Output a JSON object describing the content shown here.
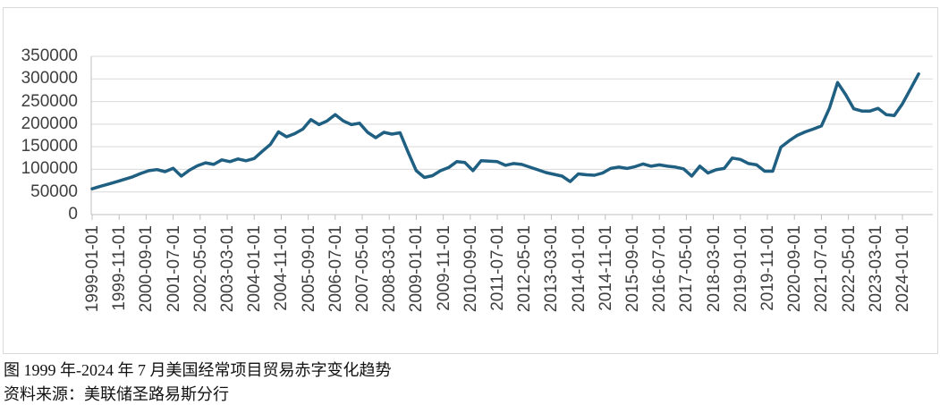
{
  "chart_data": {
    "type": "line",
    "title": "",
    "xlabel": "",
    "ylabel": "",
    "legend": "none",
    "grid": true,
    "line_color": "#1f5f82",
    "ylim": [
      0,
      350000
    ],
    "y_tick_step": 50000,
    "y_tick_labels": [
      "0",
      "50000",
      "100000",
      "150000",
      "200000",
      "250000",
      "300000",
      "350000"
    ],
    "x_tick_labels": [
      "1999-01-01",
      "1999-11-01",
      "2000-09-01",
      "2001-07-01",
      "2002-05-01",
      "2003-03-01",
      "2004-01-01",
      "2004-11-01",
      "2005-09-01",
      "2006-07-01",
      "2007-05-01",
      "2008-03-01",
      "2009-01-01",
      "2009-11-01",
      "2010-09-01",
      "2011-07-01",
      "2012-05-01",
      "2013-03-01",
      "2014-01-01",
      "2014-11-01",
      "2015-09-01",
      "2016-07-01",
      "2017-05-01",
      "2018-03-01",
      "2019-01-01",
      "2019-11-01",
      "2020-09-01",
      "2021-07-01",
      "2022-05-01",
      "2023-03-01",
      "2024-01-01"
    ],
    "x_start": "1999-01-01",
    "x_end": "2024-07-01",
    "x_step_months": 3,
    "x": [
      "1999-01-01",
      "1999-04-01",
      "1999-07-01",
      "1999-10-01",
      "2000-01-01",
      "2000-04-01",
      "2000-07-01",
      "2000-10-01",
      "2001-01-01",
      "2001-04-01",
      "2001-07-01",
      "2001-10-01",
      "2002-01-01",
      "2002-04-01",
      "2002-07-01",
      "2002-10-01",
      "2003-01-01",
      "2003-04-01",
      "2003-07-01",
      "2003-10-01",
      "2004-01-01",
      "2004-04-01",
      "2004-07-01",
      "2004-10-01",
      "2005-01-01",
      "2005-04-01",
      "2005-07-01",
      "2005-10-01",
      "2006-01-01",
      "2006-04-01",
      "2006-07-01",
      "2006-10-01",
      "2007-01-01",
      "2007-04-01",
      "2007-07-01",
      "2007-10-01",
      "2008-01-01",
      "2008-04-01",
      "2008-07-01",
      "2008-10-01",
      "2009-01-01",
      "2009-04-01",
      "2009-07-01",
      "2009-10-01",
      "2010-01-01",
      "2010-04-01",
      "2010-07-01",
      "2010-10-01",
      "2011-01-01",
      "2011-04-01",
      "2011-07-01",
      "2011-10-01",
      "2012-01-01",
      "2012-04-01",
      "2012-07-01",
      "2012-10-01",
      "2013-01-01",
      "2013-04-01",
      "2013-07-01",
      "2013-10-01",
      "2014-01-01",
      "2014-04-01",
      "2014-07-01",
      "2014-10-01",
      "2015-01-01",
      "2015-04-01",
      "2015-07-01",
      "2015-10-01",
      "2016-01-01",
      "2016-04-01",
      "2016-07-01",
      "2016-10-01",
      "2017-01-01",
      "2017-04-01",
      "2017-07-01",
      "2017-10-01",
      "2018-01-01",
      "2018-04-01",
      "2018-07-01",
      "2018-10-01",
      "2019-01-01",
      "2019-04-01",
      "2019-07-01",
      "2019-10-01",
      "2020-01-01",
      "2020-04-01",
      "2020-07-01",
      "2020-10-01",
      "2021-01-01",
      "2021-04-01",
      "2021-07-01",
      "2021-10-01",
      "2022-01-01",
      "2022-04-01",
      "2022-07-01",
      "2022-10-01",
      "2023-01-01",
      "2023-04-01",
      "2023-07-01",
      "2023-10-01",
      "2024-01-01",
      "2024-04-01",
      "2024-07-01"
    ],
    "values": [
      57000,
      62500,
      67500,
      72500,
      78000,
      83500,
      91000,
      97000,
      99500,
      95000,
      102500,
      85000,
      98000,
      108000,
      114500,
      111000,
      121000,
      117000,
      123000,
      119000,
      124000,
      140000,
      155000,
      183000,
      172000,
      179000,
      189000,
      210000,
      199000,
      207000,
      221000,
      207000,
      199000,
      202000,
      182000,
      170000,
      182000,
      178000,
      181000,
      138000,
      97000,
      82000,
      86000,
      97000,
      104000,
      117000,
      115000,
      97000,
      119000,
      118000,
      117000,
      109000,
      113000,
      111000,
      105000,
      99000,
      93000,
      89000,
      85000,
      73000,
      90000,
      88000,
      87000,
      92000,
      102000,
      105000,
      102000,
      106000,
      112000,
      107000,
      110000,
      107000,
      105000,
      101000,
      85000,
      107000,
      92000,
      99000,
      102000,
      125000,
      122000,
      113000,
      110000,
      96000,
      96000,
      149000,
      163000,
      175000,
      183000,
      189000,
      196000,
      236000,
      292000,
      265000,
      234000,
      229000,
      229000,
      235000,
      221000,
      219000,
      245000,
      278000,
      311000
    ]
  },
  "colors": {
    "line": "#1f5f82",
    "gridline": "#d9d9d9",
    "axis": "#bfbfbf",
    "tick_label": "#3f3f3f",
    "border": "#d9d9d9"
  },
  "caption": {
    "line1": "图 1999 年-2024 年 7 月美国经常项目贸易赤字变化趋势",
    "line2": "资料来源：美联储圣路易斯分行"
  }
}
